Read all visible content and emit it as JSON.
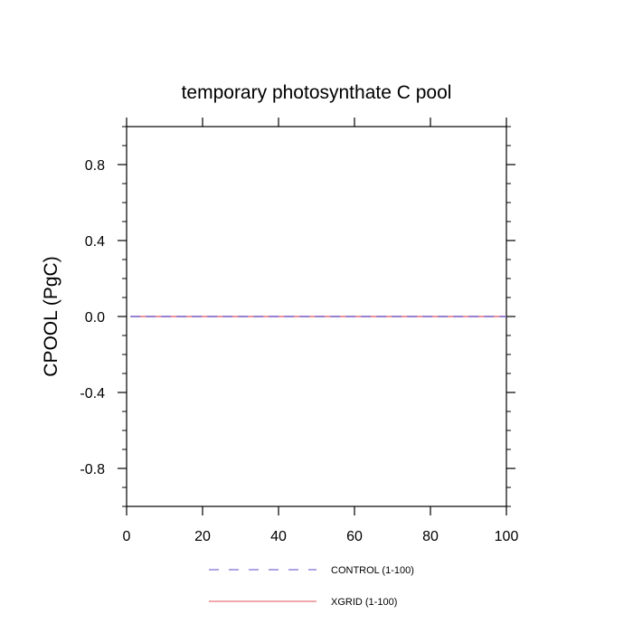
{
  "chart_data": {
    "type": "line",
    "title": "temporary photosynthate C pool",
    "xlabel": "",
    "ylabel": "CPOOL  (PgC)",
    "xlim": [
      0,
      100
    ],
    "ylim": [
      -1.0,
      1.0
    ],
    "x_ticks": [
      0,
      20,
      40,
      60,
      80,
      100
    ],
    "x_tick_labels": [
      "0",
      "20",
      "40",
      "60",
      "80",
      "100"
    ],
    "y_ticks": [
      -0.8,
      -0.4,
      0.0,
      0.4,
      0.8
    ],
    "y_tick_labels": [
      "-0.8",
      "-0.4",
      "0.0",
      "0.4",
      "0.8"
    ],
    "grid": false,
    "legend_position": "bottom",
    "series": [
      {
        "name": "CONTROL (1-100)",
        "x": [
          1,
          100
        ],
        "y": [
          0.0,
          0.0
        ],
        "color": "#7b6fd6",
        "style": "dashed"
      },
      {
        "name": "XGRID (1-100)",
        "x": [
          1,
          100
        ],
        "y": [
          0.0,
          0.0
        ],
        "color": "#e8707c",
        "style": "solid"
      }
    ]
  }
}
